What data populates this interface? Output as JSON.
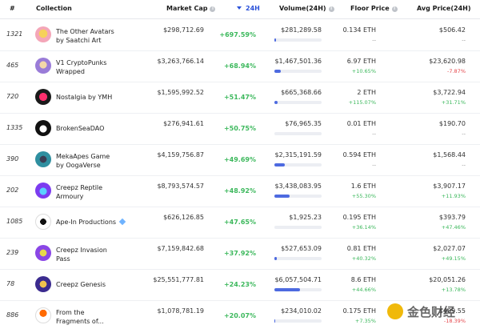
{
  "header": {
    "rank": "#",
    "collection": "Collection",
    "market_cap": "Market Cap",
    "change_24h": "24H",
    "volume": "Volume(24H)",
    "floor": "Floor Price",
    "avg": "Avg Price(24H)"
  },
  "rows": [
    {
      "rank": "1321",
      "name1": "The Other Avatars",
      "name2": "by Saatchi Art",
      "mcap": "$298,712.69",
      "change": "+697.59%",
      "volume": "$281,289.58",
      "vol_fill": 0.04,
      "floor": "0.134 ETH",
      "floor_change": "--",
      "avg": "$506.42",
      "avg_change": "--"
    },
    {
      "rank": "465",
      "name1": "V1 CryptoPunks",
      "name2": "Wrapped",
      "mcap": "$3,263,766.14",
      "change": "+68.94%",
      "volume": "$1,467,501.36",
      "vol_fill": 0.14,
      "floor": "6.97 ETH",
      "floor_change": "+10.65%",
      "avg": "$23,620.98",
      "avg_change": "-7.87%"
    },
    {
      "rank": "720",
      "name1": "Nostalgia by YMH",
      "name2": "",
      "mcap": "$1,595,992.52",
      "change": "+51.47%",
      "volume": "$665,368.66",
      "vol_fill": 0.07,
      "floor": "2 ETH",
      "floor_change": "+115.07%",
      "avg": "$3,722.94",
      "avg_change": "+31.71%"
    },
    {
      "rank": "1335",
      "name1": "BrokenSeaDAO",
      "name2": "",
      "mcap": "$276,941.61",
      "change": "+50.75%",
      "volume": "$76,965.35",
      "vol_fill": 0.0,
      "floor": "0.01 ETH",
      "floor_change": "--",
      "avg": "$190.70",
      "avg_change": "--"
    },
    {
      "rank": "390",
      "name1": "MekaApes Game",
      "name2": "by OogaVerse",
      "mcap": "$4,159,756.87",
      "change": "+49.69%",
      "volume": "$2,315,191.59",
      "vol_fill": 0.22,
      "floor": "0.594 ETH",
      "floor_change": "--",
      "avg": "$1,568.44",
      "avg_change": "--"
    },
    {
      "rank": "202",
      "name1": "Creepz Reptile",
      "name2": "Armoury",
      "mcap": "$8,793,574.57",
      "change": "+48.92%",
      "volume": "$3,438,083.95",
      "vol_fill": 0.32,
      "floor": "1.6 ETH",
      "floor_change": "+55.30%",
      "avg": "$3,907.17",
      "avg_change": "+11.93%"
    },
    {
      "rank": "1085",
      "name1": "Ape-In Productions",
      "name2": "",
      "mcap": "$626,126.85",
      "change": "+47.65%",
      "volume": "$1,925.23",
      "vol_fill": 0.0,
      "floor": "0.195 ETH",
      "floor_change": "+36.14%",
      "avg": "$393.79",
      "avg_change": "+47.46%"
    },
    {
      "rank": "239",
      "name1": "Creepz Invasion",
      "name2": "Pass",
      "mcap": "$7,159,842.68",
      "change": "+37.92%",
      "volume": "$527,653.09",
      "vol_fill": 0.05,
      "floor": "0.81 ETH",
      "floor_change": "+40.32%",
      "avg": "$2,027.07",
      "avg_change": "+49.15%"
    },
    {
      "rank": "78",
      "name1": "Creepz Genesis",
      "name2": "",
      "mcap": "$25,551,777.81",
      "change": "+24.23%",
      "volume": "$6,057,504.71",
      "vol_fill": 0.55,
      "floor": "8.6 ETH",
      "floor_change": "+44.66%",
      "avg": "$20,051.26",
      "avg_change": "+13.78%"
    },
    {
      "rank": "886",
      "name1": "From the",
      "name2": "Fragments of...",
      "mcap": "$1,078,781.19",
      "change": "+20.07%",
      "volume": "$234,010.02",
      "vol_fill": 0.02,
      "floor": "0.175 ETH",
      "floor_change": "+7.35%",
      "avg": "$409.55",
      "avg_change": "-18.39%"
    }
  ],
  "watermark": "金色财经"
}
